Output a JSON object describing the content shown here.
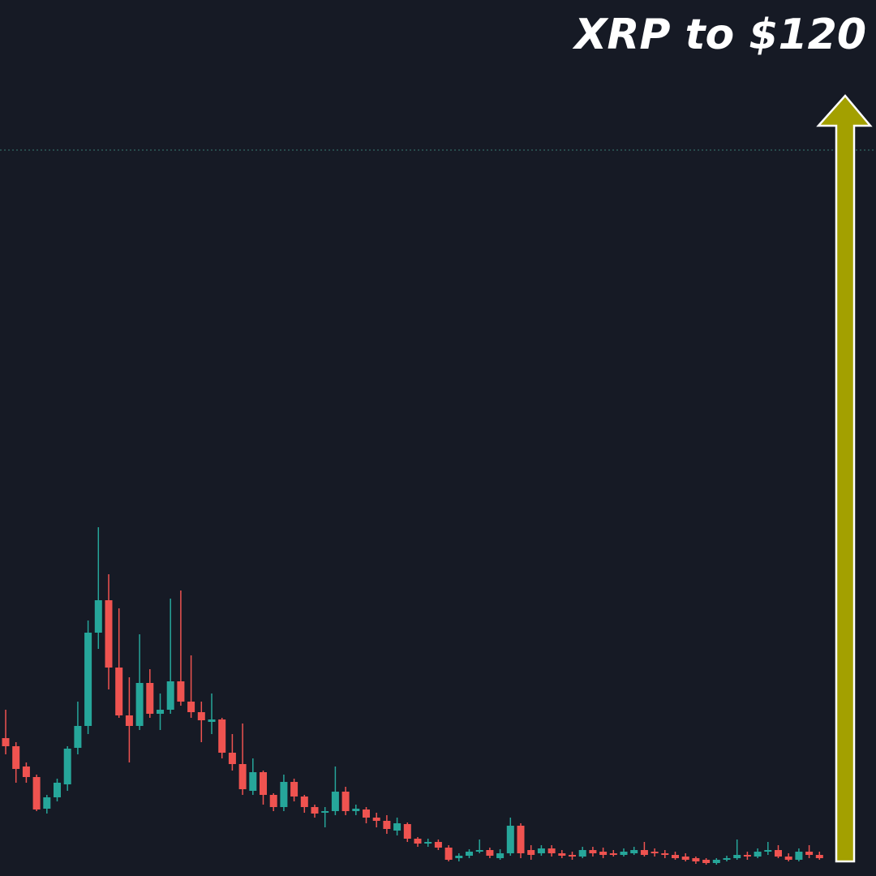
{
  "chart_data": {
    "type": "candlestick",
    "title": "XRP to $120",
    "ylim": [
      0,
      1080
    ],
    "up_color": "#26a69a",
    "down_color": "#ef5350",
    "open": [
      170,
      160,
      135,
      122,
      83,
      97,
      113,
      158,
      185,
      300,
      340,
      257,
      198,
      185,
      238,
      200,
      205,
      240,
      215,
      202,
      190,
      193,
      152,
      138,
      105,
      128,
      100,
      85,
      116,
      98,
      85,
      78,
      80,
      104,
      80,
      82,
      72,
      68,
      56,
      64,
      46,
      40,
      42,
      35,
      22,
      25,
      30,
      32,
      22,
      28,
      62,
      32,
      28,
      34,
      28,
      26,
      24,
      32,
      30,
      28,
      26,
      28,
      32,
      30,
      28,
      26,
      24,
      22,
      20,
      16,
      20,
      22,
      26,
      24,
      30,
      32,
      24,
      20,
      30,
      26
    ],
    "high": [
      205,
      165,
      140,
      125,
      100,
      120,
      160,
      215,
      315,
      430,
      372,
      330,
      245,
      298,
      255,
      225,
      342,
      352,
      272,
      215,
      225,
      195,
      175,
      188,
      145,
      130,
      102,
      125,
      120,
      100,
      88,
      85,
      135,
      110,
      88,
      85,
      78,
      75,
      72,
      66,
      48,
      46,
      45,
      38,
      28,
      33,
      45,
      35,
      33,
      72,
      65,
      38,
      38,
      38,
      32,
      30,
      36,
      36,
      35,
      32,
      34,
      36,
      42,
      34,
      32,
      30,
      28,
      24,
      22,
      22,
      25,
      45,
      30,
      34,
      42,
      38,
      28,
      34,
      38,
      30
    ],
    "low": [
      150,
      115,
      115,
      80,
      77,
      92,
      105,
      150,
      175,
      280,
      230,
      195,
      140,
      180,
      195,
      180,
      200,
      210,
      195,
      165,
      175,
      145,
      130,
      100,
      100,
      88,
      80,
      80,
      92,
      78,
      72,
      60,
      75,
      75,
      75,
      65,
      60,
      52,
      50,
      42,
      36,
      36,
      32,
      18,
      18,
      22,
      28,
      22,
      20,
      25,
      22,
      20,
      25,
      24,
      22,
      20,
      22,
      24,
      22,
      24,
      24,
      26,
      24,
      24,
      22,
      20,
      18,
      15,
      14,
      14,
      18,
      20,
      20,
      22,
      26,
      22,
      18,
      18,
      22,
      20
    ],
    "close": [
      160,
      132,
      122,
      82,
      97,
      115,
      157,
      185,
      300,
      340,
      257,
      198,
      185,
      238,
      200,
      205,
      240,
      215,
      202,
      192,
      193,
      152,
      138,
      107,
      128,
      100,
      85,
      116,
      98,
      85,
      77,
      80,
      104,
      80,
      83,
      72,
      68,
      58,
      65,
      46,
      40,
      42,
      35,
      20,
      25,
      30,
      32,
      25,
      28,
      62,
      28,
      26,
      34,
      28,
      25,
      24,
      32,
      28,
      26,
      26,
      30,
      32,
      26,
      28,
      26,
      22,
      20,
      18,
      16,
      20,
      22,
      26,
      24,
      30,
      32,
      24,
      20,
      30,
      26,
      22
    ]
  }
}
